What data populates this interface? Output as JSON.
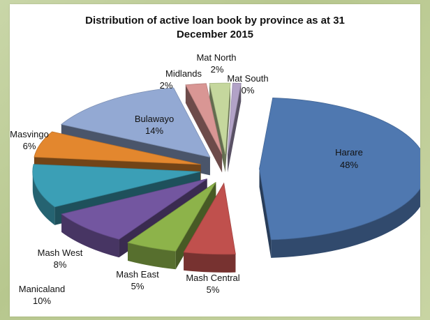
{
  "chart_data": {
    "type": "pie",
    "title_line1": "Distribution of active loan book by province as at 31",
    "title_line2": "December 2015",
    "slices": [
      {
        "name": "Harare",
        "value": 48,
        "label": "48%",
        "color": "#4f78b0"
      },
      {
        "name": "Mash Central",
        "value": 5,
        "label": "5%",
        "color": "#c0504d"
      },
      {
        "name": "Mash East",
        "value": 5,
        "label": "5%",
        "color": "#8db34a"
      },
      {
        "name": "Mash West",
        "value": 8,
        "label": "8%",
        "color": "#7356a0"
      },
      {
        "name": "Manicaland",
        "value": 10,
        "label": "10%",
        "color": "#3b9fb6"
      },
      {
        "name": "Masvingo",
        "value": 6,
        "label": "6%",
        "color": "#e3872e"
      },
      {
        "name": "Bulawayo",
        "value": 14,
        "label": "14%",
        "color": "#93a9d3"
      },
      {
        "name": "Midlands",
        "value": 2,
        "label": "2%",
        "color": "#d99694"
      },
      {
        "name": "Mat North",
        "value": 2,
        "label": "2%",
        "color": "#c5d79d"
      },
      {
        "name": "Mat South",
        "value": 0,
        "label": "0%",
        "color": "#b2a2c7"
      }
    ]
  }
}
